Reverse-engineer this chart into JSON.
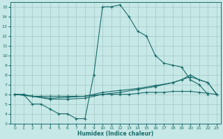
{
  "xlabel": "Humidex (Indice chaleur)",
  "xlim": [
    -0.5,
    23.5
  ],
  "ylim": [
    3,
    15.5
  ],
  "xticks": [
    0,
    1,
    2,
    3,
    4,
    5,
    6,
    7,
    8,
    9,
    10,
    11,
    12,
    13,
    14,
    15,
    16,
    17,
    18,
    19,
    20,
    21,
    22,
    23
  ],
  "yticks": [
    3,
    4,
    5,
    6,
    7,
    8,
    9,
    10,
    11,
    12,
    13,
    14,
    15
  ],
  "bg_color": "#c6e8e6",
  "line_color": "#1a6b6b",
  "grid_color": "#9bbfbf",
  "curves": [
    {
      "x": [
        1,
        2,
        3,
        4,
        5,
        6,
        7,
        8,
        9,
        10,
        11,
        12,
        13,
        14,
        15,
        16,
        17,
        18,
        19,
        20,
        21,
        22
      ],
      "y": [
        6.0,
        5.0,
        5.0,
        4.5,
        4.0,
        4.0,
        3.5,
        3.5,
        8.0,
        15.0,
        15.0,
        15.2,
        14.0,
        12.5,
        12.0,
        10.0,
        9.2,
        9.0,
        8.8,
        7.5,
        7.0,
        6.0
      ]
    },
    {
      "x": [
        0,
        1,
        2,
        3,
        4,
        5,
        6,
        7,
        8,
        9,
        10,
        11,
        12,
        13,
        14,
        15,
        16,
        17,
        18,
        19,
        20,
        21,
        22,
        23
      ],
      "y": [
        6.0,
        6.0,
        5.8,
        5.8,
        5.8,
        5.8,
        5.8,
        5.8,
        5.8,
        5.9,
        6.0,
        6.0,
        6.0,
        6.0,
        6.1,
        6.2,
        6.2,
        6.2,
        6.3,
        6.3,
        6.3,
        6.2,
        6.1,
        6.0
      ]
    },
    {
      "x": [
        0,
        2,
        4,
        6,
        8,
        10,
        12,
        14,
        16,
        18,
        20,
        22,
        23
      ],
      "y": [
        6.0,
        5.8,
        5.6,
        5.7,
        5.8,
        6.2,
        6.4,
        6.6,
        6.9,
        7.2,
        7.8,
        7.2,
        6.0
      ]
    },
    {
      "x": [
        0,
        2,
        4,
        6,
        8,
        10,
        12,
        14,
        16,
        18,
        19,
        20,
        21,
        22,
        23
      ],
      "y": [
        6.0,
        5.8,
        5.5,
        5.5,
        5.6,
        6.0,
        6.2,
        6.5,
        6.8,
        7.2,
        7.5,
        8.0,
        7.5,
        7.2,
        6.0
      ]
    }
  ]
}
